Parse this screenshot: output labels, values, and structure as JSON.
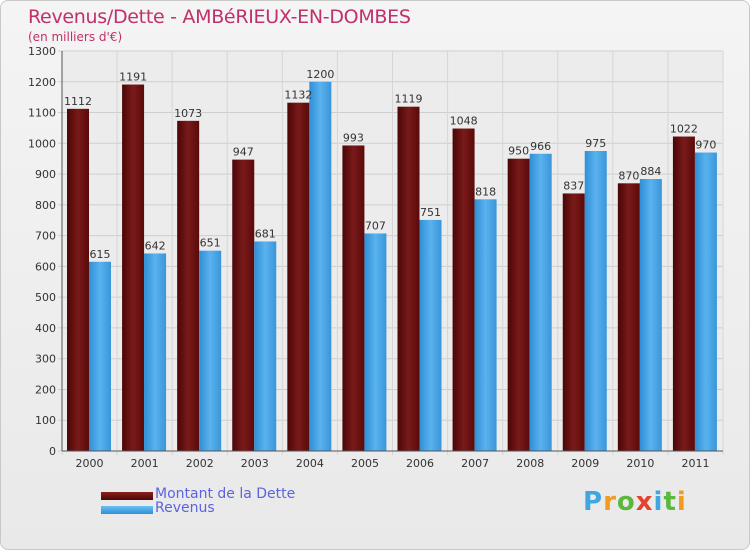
{
  "title": "Revenus/Dette - AMBéRIEUX-EN-DOMBES",
  "subtitle": "(en milliers d'€)",
  "brand": {
    "parts": [
      "P",
      "r",
      "o",
      "x",
      "i",
      "t",
      "i"
    ]
  },
  "colors": {
    "dette": "#6e1212",
    "revenus": "#45a3e6",
    "title": "#c0306a",
    "legend_text": "#5b63e0"
  },
  "chart_data": {
    "type": "bar",
    "categories": [
      "2000",
      "2001",
      "2002",
      "2003",
      "2004",
      "2005",
      "2006",
      "2007",
      "2008",
      "2009",
      "2010",
      "2011"
    ],
    "series": [
      {
        "name": "Montant de la Dette",
        "values": [
          1112,
          1191,
          1073,
          947,
          1132,
          993,
          1119,
          1048,
          950,
          837,
          870,
          1022
        ]
      },
      {
        "name": "Revenus",
        "values": [
          615,
          642,
          651,
          681,
          1200,
          707,
          751,
          818,
          966,
          975,
          884,
          970
        ]
      }
    ],
    "title": "Revenus/Dette - AMBéRIEUX-EN-DOMBES",
    "ylabel": "(en milliers d'€)",
    "ylim": [
      0,
      1300
    ],
    "yticks": [
      0,
      100,
      200,
      300,
      400,
      500,
      600,
      700,
      800,
      900,
      1000,
      1100,
      1200,
      1300
    ],
    "grid": true,
    "legend_position": "bottom-left"
  }
}
